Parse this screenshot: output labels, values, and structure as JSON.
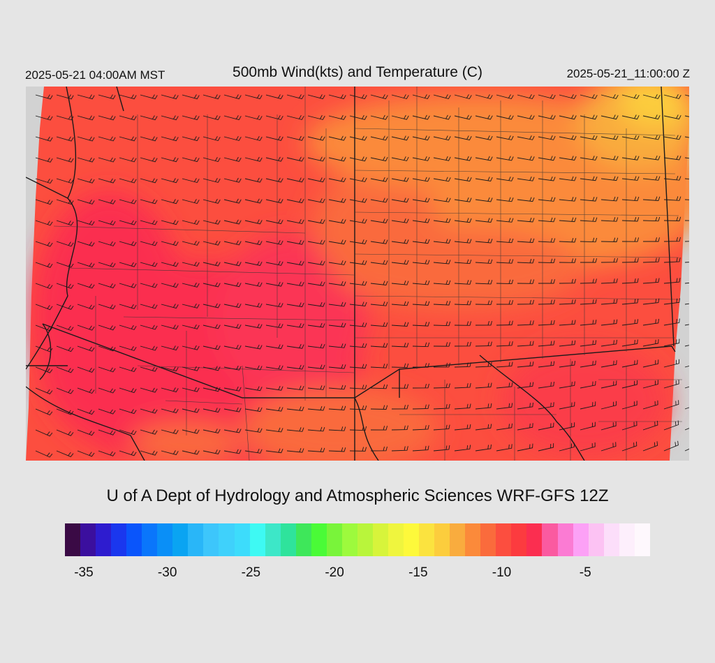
{
  "header": {
    "left": "2025-05-21 04:00AM MST",
    "title": "500mb Wind(kts) and Temperature (C)",
    "right": "2025-05-21_11:00:00 Z"
  },
  "credit": "U of A Dept of Hydrology and Atmospheric Sciences WRF-GFS 12Z",
  "legend": {
    "colors": [
      "#3a0a45",
      "#3b0f9e",
      "#2e1ccf",
      "#1a37ee",
      "#0a55fb",
      "#0a76fb",
      "#0a8ff7",
      "#0aa4f2",
      "#29b6f8",
      "#3dc6fb",
      "#3fd1fb",
      "#3ddcfb",
      "#3ef9f3",
      "#3de7c8",
      "#2fe39c",
      "#3ee75a",
      "#4afb37",
      "#79f43a",
      "#9dfa3d",
      "#b9f53b",
      "#d7f43b",
      "#eff53e",
      "#fdf93b",
      "#fbe33f",
      "#fccd3d",
      "#f9ac3e",
      "#fb8a3a",
      "#fa6b3c",
      "#fc4e3f",
      "#fc3b3f",
      "#fb2e50",
      "#fa5aa0",
      "#fb7bd3",
      "#fca1f6",
      "#fcc2f3",
      "#fcdefa",
      "#fdeffc",
      "#fef8fd"
    ],
    "ticks": [
      "-35",
      "-30",
      "-25",
      "-20",
      "-15",
      "-10",
      "-5"
    ],
    "tick_values": [
      -35,
      -30,
      -25,
      -20,
      -15,
      -10,
      -5
    ],
    "range": [
      -36,
      -1
    ]
  },
  "map": {
    "background": "#d2d2d2",
    "fill_colors": {
      "orange": "#fb8a3a",
      "red_orange": "#fa6b3c",
      "red": "#fc4e3f",
      "crimson": "#fc3b3f",
      "pink_red": "#fb2e50",
      "yellow_orange": "#f9ac3e"
    },
    "line_color": "#1a1a1a"
  }
}
